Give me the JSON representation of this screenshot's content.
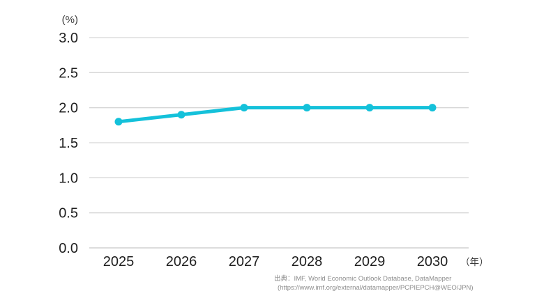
{
  "chart_data": {
    "type": "line",
    "categories": [
      "2025",
      "2026",
      "2027",
      "2028",
      "2029",
      "2030"
    ],
    "values": [
      1.8,
      1.9,
      2.0,
      2.0,
      2.0,
      2.0
    ],
    "title": "",
    "xlabel": "（年）",
    "ylabel": "(%)",
    "ylim": [
      0.0,
      3.0
    ],
    "ytick_step": 0.5,
    "ytick_labels": [
      "0.0",
      "0.5",
      "1.0",
      "1.5",
      "2.0",
      "2.5",
      "3.0"
    ],
    "grid": true,
    "legend": "none",
    "line_color": "#14c1da",
    "marker_color": "#14c1da",
    "gridline_color": "#d6d6d6",
    "baseline_color": "#c7c7c7"
  },
  "source": {
    "line1": "出典：IMF, World Economic Outlook Database, DataMapper",
    "line2": "(https://www.imf.org/external/datamapper/PCPIEPCH@WEO/JPN)"
  }
}
